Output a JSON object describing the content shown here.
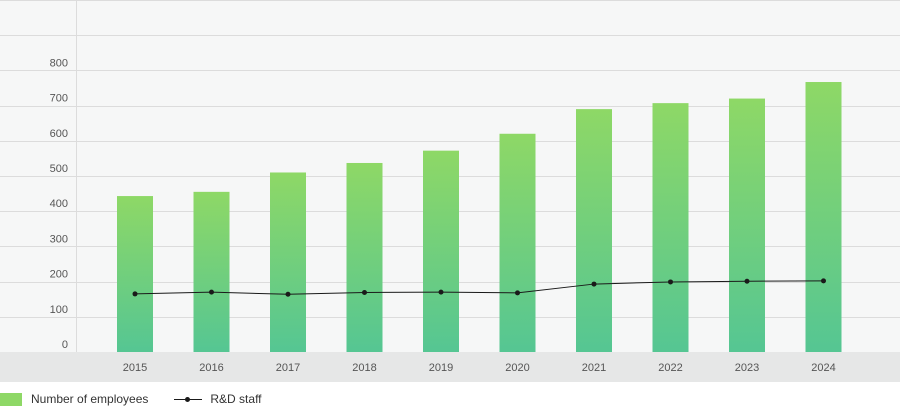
{
  "chart_data": {
    "type": "bar",
    "categories": [
      "2015",
      "2016",
      "2017",
      "2018",
      "2019",
      "2020",
      "2021",
      "2022",
      "2023",
      "2024"
    ],
    "series": [
      {
        "name": "Number of employees",
        "type": "bar",
        "values": [
          443,
          455,
          510,
          537,
          572,
          620,
          690,
          707,
          720,
          767
        ]
      },
      {
        "name": "R&D staff",
        "type": "line",
        "values": [
          165,
          170,
          164,
          169,
          170,
          168,
          193,
          199,
          201,
          202
        ]
      }
    ],
    "ylim": [
      0,
      1000
    ],
    "yticks": [
      0,
      100,
      200,
      300,
      400,
      500,
      600,
      700,
      800
    ],
    "grid": true,
    "legend_position": "bottom-left",
    "colors": {
      "bar_top": "#8ed866",
      "bar_bottom": "#55c693",
      "line": "#1a1a1a",
      "plot_bg": "#f6f7f7",
      "axis_band": "#e6e7e7",
      "grid": "#dcdcdc"
    }
  },
  "legend": {
    "employees_label": "Number of employees",
    "rd_label": "R&D staff"
  }
}
